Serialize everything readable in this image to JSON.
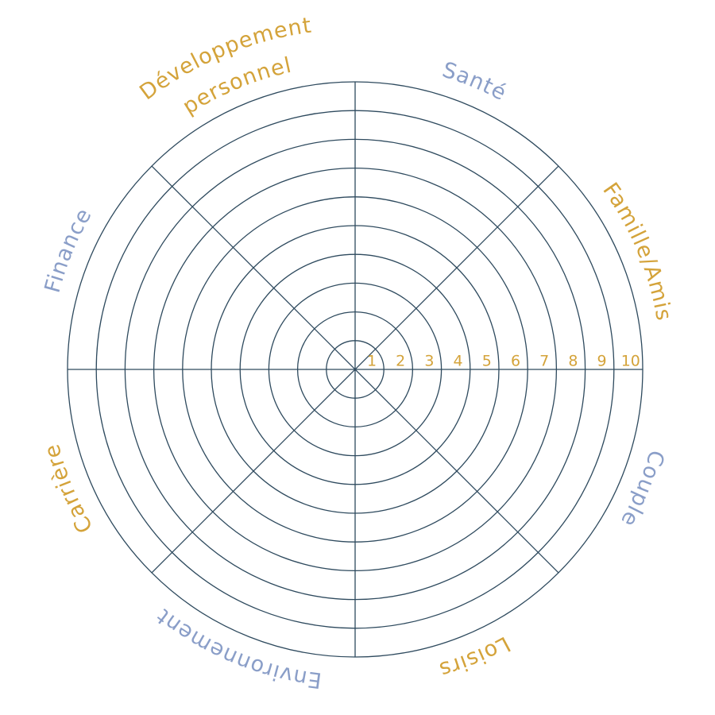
{
  "wheel": {
    "segments": [
      {
        "lines": [
          "Santé"
        ],
        "color": "#8a9ec8"
      },
      {
        "lines": [
          "Famille/Amis"
        ],
        "color": "#d4a33a"
      },
      {
        "lines": [
          "Couple"
        ],
        "color": "#8a9ec8"
      },
      {
        "lines": [
          "Loisirs"
        ],
        "color": "#d4a33a"
      },
      {
        "lines": [
          "Environnement"
        ],
        "color": "#8a9ec8"
      },
      {
        "lines": [
          "Carrière"
        ],
        "color": "#d4a33a"
      },
      {
        "lines": [
          "Finance"
        ],
        "color": "#8a9ec8"
      },
      {
        "lines": [
          "Développement",
          "personnel"
        ],
        "color": "#d4a33a"
      }
    ],
    "scale": [
      1,
      2,
      3,
      4,
      5,
      6,
      7,
      8,
      9,
      10
    ]
  }
}
